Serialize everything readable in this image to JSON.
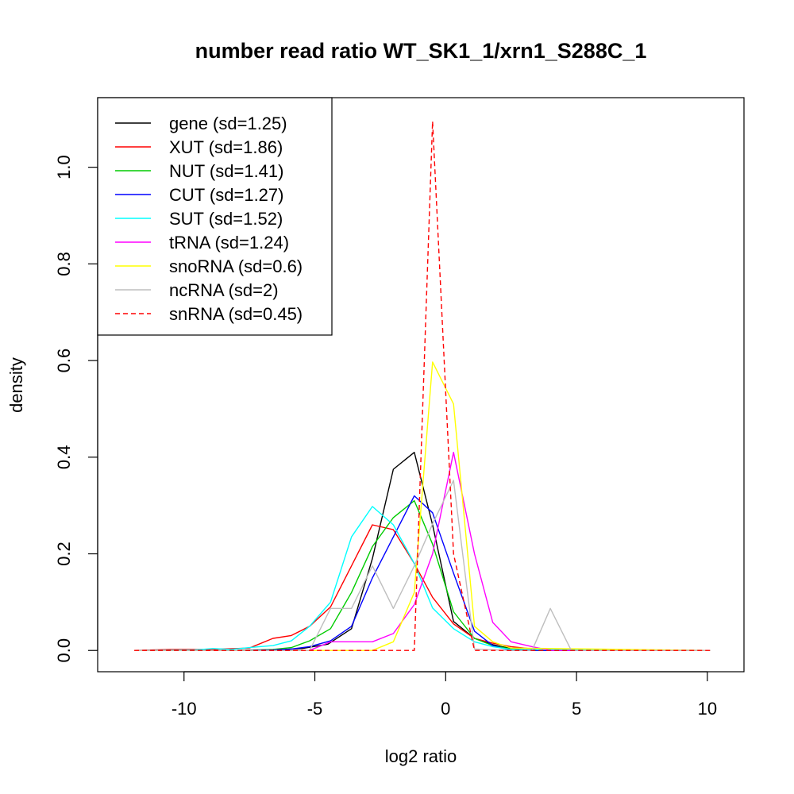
{
  "chart_data": {
    "type": "line",
    "title": "number read ratio WT_SK1_1/xrn1_S288C_1",
    "xlabel": "log2 ratio",
    "ylabel": "density",
    "xlim": [
      -13.3,
      11.4
    ],
    "ylim": [
      -0.044,
      1.144
    ],
    "x_ticks": [
      -10,
      -5,
      0,
      5,
      10
    ],
    "x_tick_labels": [
      "-10",
      "-5",
      "0",
      "5",
      "10"
    ],
    "y_ticks": [
      0.0,
      0.2,
      0.4,
      0.6,
      0.8,
      1.0
    ],
    "y_tick_labels": [
      "0.0",
      "0.2",
      "0.4",
      "0.6",
      "0.8",
      "1.0"
    ],
    "grid": false,
    "legend_position": "top-left",
    "series": [
      {
        "name": "gene (sd=1.25)",
        "color": "#000000",
        "dash": "solid",
        "x": [
          -11.9,
          -10,
          -8,
          -6.6,
          -5.5,
          -4.5,
          -3.6,
          -2.8,
          -2.0,
          -1.2,
          -0.5,
          0.3,
          1.1,
          1.8,
          2.5,
          3.5,
          10.1
        ],
        "y": [
          0,
          0,
          0,
          0.001,
          0.004,
          0.013,
          0.045,
          0.19,
          0.375,
          0.41,
          0.26,
          0.06,
          0.025,
          0.012,
          0.004,
          0,
          0
        ]
      },
      {
        "name": "XUT (sd=1.86)",
        "color": "#ff0000",
        "dash": "solid",
        "x": [
          -11.9,
          -10.5,
          -9,
          -7.5,
          -6.6,
          -5.9,
          -5.2,
          -4.4,
          -3.6,
          -2.8,
          -2.0,
          -1.2,
          -0.5,
          0.3,
          1.1,
          1.8,
          2.5,
          3.5,
          10.1
        ],
        "y": [
          0,
          0.002,
          0.002,
          0.005,
          0.025,
          0.031,
          0.05,
          0.09,
          0.175,
          0.26,
          0.25,
          0.18,
          0.11,
          0.055,
          0.025,
          0.015,
          0.008,
          0.002,
          0
        ]
      },
      {
        "name": "NUT (sd=1.41)",
        "color": "#00cc00",
        "dash": "solid",
        "x": [
          -11.9,
          -8,
          -6.6,
          -5.9,
          -5.2,
          -4.4,
          -3.6,
          -2.8,
          -2.0,
          -1.2,
          -0.5,
          0.3,
          1.1,
          1.8,
          2.5,
          3.5,
          10.1
        ],
        "y": [
          0,
          0,
          0.002,
          0.006,
          0.02,
          0.045,
          0.12,
          0.215,
          0.275,
          0.31,
          0.22,
          0.08,
          0.025,
          0.01,
          0.003,
          0,
          0
        ]
      },
      {
        "name": "CUT (sd=1.27)",
        "color": "#0000ff",
        "dash": "solid",
        "x": [
          -11.9,
          -8,
          -6.6,
          -5.9,
          -5.2,
          -4.4,
          -3.6,
          -2.8,
          -2.0,
          -1.2,
          -0.5,
          0.3,
          1.1,
          1.8,
          2.5,
          10.1
        ],
        "y": [
          0,
          0,
          0.001,
          0.003,
          0.008,
          0.02,
          0.05,
          0.15,
          0.235,
          0.32,
          0.285,
          0.16,
          0.04,
          0.01,
          0,
          0
        ]
      },
      {
        "name": "SUT (sd=1.52)",
        "color": "#00ffff",
        "dash": "solid",
        "x": [
          -11.9,
          -9.6,
          -8.9,
          -8.2,
          -7.5,
          -6.6,
          -5.9,
          -5.2,
          -4.4,
          -3.6,
          -2.8,
          -2.0,
          -1.2,
          -0.5,
          0.3,
          1.1,
          1.8,
          2.5,
          10.1
        ],
        "y": [
          0,
          0.001,
          0.004,
          0.002,
          0.006,
          0.01,
          0.02,
          0.05,
          0.1,
          0.235,
          0.298,
          0.26,
          0.18,
          0.088,
          0.045,
          0.018,
          0.008,
          0.002,
          0
        ]
      },
      {
        "name": "tRNA (sd=1.24)",
        "color": "#ff00ff",
        "dash": "solid",
        "x": [
          -11.9,
          -5.2,
          -4.4,
          -3.6,
          -2.8,
          -2.0,
          -1.2,
          -0.5,
          0.3,
          1.1,
          1.8,
          2.5,
          3.3,
          4.0,
          10.1
        ],
        "y": [
          0,
          0,
          0.018,
          0.018,
          0.018,
          0.035,
          0.095,
          0.2,
          0.41,
          0.2,
          0.058,
          0.018,
          0.008,
          0,
          0
        ]
      },
      {
        "name": "snoRNA (sd=0.6)",
        "color": "#ffff00",
        "dash": "solid",
        "x": [
          -11.9,
          -2.8,
          -2.0,
          -1.2,
          -0.5,
          0.3,
          1.1,
          1.8,
          2.5,
          10.1
        ],
        "y": [
          0,
          0,
          0.018,
          0.12,
          0.597,
          0.51,
          0.05,
          0.018,
          0.005,
          0
        ]
      },
      {
        "name": "ncRNA (sd=2)",
        "color": "#bebebe",
        "dash": "solid",
        "x": [
          -11.9,
          -5.2,
          -4.4,
          -3.6,
          -2.8,
          -2.0,
          -1.2,
          -0.5,
          0.3,
          1.1,
          2.5,
          3.3,
          4.0,
          4.8,
          10.1
        ],
        "y": [
          0,
          0,
          0.087,
          0.087,
          0.175,
          0.087,
          0.175,
          0.262,
          0.352,
          0.003,
          0,
          0,
          0.087,
          0,
          0
        ]
      },
      {
        "name": "snRNA (sd=0.45)",
        "color": "#ff0000",
        "dash": "dashed",
        "x": [
          -11.9,
          -1.2,
          -0.5,
          0.3,
          1.1,
          10.1
        ],
        "y": [
          0,
          0,
          1.095,
          0.2,
          0,
          0
        ]
      }
    ]
  }
}
